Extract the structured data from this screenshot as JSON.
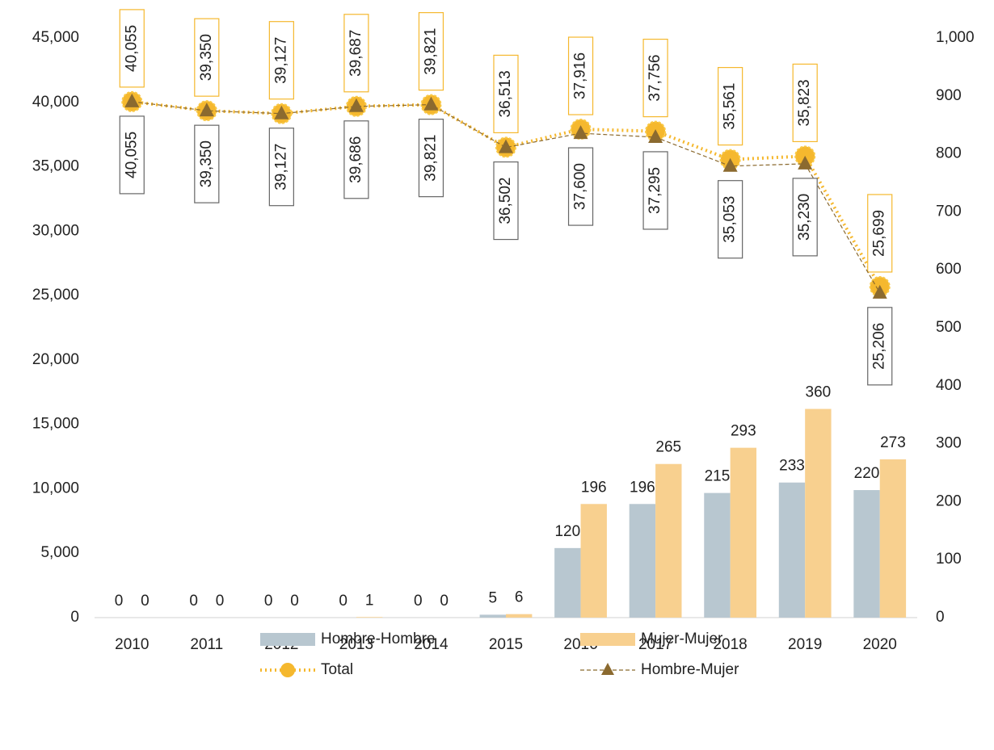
{
  "chart_data": {
    "type": "bar-line",
    "categories": [
      "2010",
      "2011",
      "2012",
      "2013",
      "2014",
      "2015",
      "2016",
      "2017",
      "2018",
      "2019",
      "2020"
    ],
    "series": [
      {
        "name": "Hombre-Hombre",
        "type": "bar",
        "axis": "y2",
        "color": "#b8c7d0",
        "values": [
          0,
          0,
          0,
          0,
          0,
          5,
          120,
          196,
          215,
          233,
          220
        ]
      },
      {
        "name": "Mujer-Mujer",
        "type": "bar",
        "axis": "y2",
        "color": "#f8d08f",
        "values": [
          0,
          0,
          0,
          1,
          0,
          6,
          196,
          265,
          293,
          360,
          273
        ]
      },
      {
        "name": "Total",
        "type": "line",
        "color": "#f5b82e",
        "values": [
          40055,
          39350,
          39127,
          39687,
          39821,
          36513,
          37916,
          37756,
          35561,
          35823,
          25699
        ],
        "value_labels": [
          "40,055",
          "39,350",
          "39,127",
          "39,687",
          "39,821",
          "36,513",
          "37,916",
          "37,756",
          "35,561",
          "35,823",
          "25,699"
        ]
      },
      {
        "name": "Hombre-Mujer",
        "type": "line",
        "color": "#8b6a2f",
        "values": [
          40055,
          39350,
          39127,
          39686,
          39821,
          36502,
          37600,
          37295,
          35053,
          35230,
          25206
        ],
        "value_labels": [
          "40,055",
          "39,350",
          "39,127",
          "39,686",
          "39,821",
          "36,502",
          "37,600",
          "37,295",
          "35,053",
          "35,230",
          "25,206"
        ]
      }
    ],
    "ylim": [
      0,
      45000
    ],
    "yticks": [
      0,
      {
        "value": 5000,
        "label": "5,000"
      },
      {
        "value": 10000,
        "label": "10,000"
      },
      {
        "value": 15000,
        "label": "15,000"
      },
      {
        "value": 20000,
        "label": "20,000"
      },
      {
        "value": 25000,
        "label": "25,000"
      },
      {
        "value": 30000,
        "label": "30,000"
      },
      {
        "value": 35000,
        "label": "35,000"
      },
      {
        "value": 40000,
        "label": "40,000"
      },
      {
        "value": 45000,
        "label": "45,000"
      }
    ],
    "y2lim": [
      0,
      1000
    ],
    "y2ticks": [
      0,
      100,
      200,
      300,
      400,
      500,
      600,
      700,
      800,
      900,
      {
        "value": 1000,
        "label": "1,000"
      }
    ],
    "grid": false,
    "legend": "bottom"
  }
}
